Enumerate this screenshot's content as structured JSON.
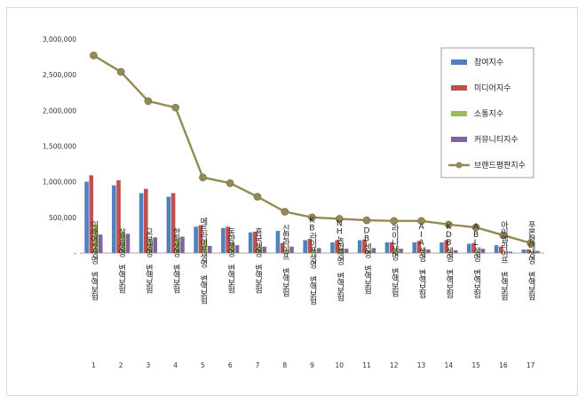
{
  "chart_data": {
    "type": "bar",
    "title": "",
    "xlabel": "",
    "ylabel": "",
    "ylim": [
      0,
      3000000
    ],
    "yticks": [
      "-",
      "500,000",
      "1,000,000",
      "1,500,000",
      "2,000,000",
      "2,500,000",
      "3,000,000"
    ],
    "grid": false,
    "legend_position": "top-right",
    "categories": [
      "미래에셋생명 변액보험",
      "삼성생명 변액보험",
      "교보생명 변액보험",
      "한화생명 변액보험",
      "메트라이프생명 변액보험",
      "동양생명 변액보험",
      "흥국생명 변액보험",
      "신한라이프 변액보험",
      "KB라이프생명 변액보험",
      "NH농협생명 변액보험",
      "DB생명 변액보험",
      "라이나생명 변액보험",
      "AIA생명 변액보험",
      "KDB생명 변액보험",
      "ABL생명 변액보험",
      "아이엠라이프 변액보험",
      "푸본현대생명 변액보험"
    ],
    "ranks": [
      "1",
      "2",
      "3",
      "4",
      "5",
      "6",
      "7",
      "8",
      "9",
      "10",
      "11",
      "12",
      "13",
      "14",
      "15",
      "16",
      "17"
    ],
    "series": [
      {
        "name": "참여지수",
        "color": "#4f81bd",
        "kind": "bar",
        "values": [
          1000000,
          950000,
          840000,
          790000,
          370000,
          350000,
          290000,
          310000,
          180000,
          150000,
          180000,
          150000,
          150000,
          150000,
          130000,
          110000,
          50000
        ]
      },
      {
        "name": "미디어지수",
        "color": "#c0504d",
        "kind": "bar",
        "values": [
          1090000,
          1020000,
          900000,
          840000,
          390000,
          370000,
          300000,
          140000,
          200000,
          180000,
          190000,
          150000,
          170000,
          180000,
          140000,
          90000,
          50000
        ]
      },
      {
        "name": "소통지수",
        "color": "#9bbb59",
        "kind": "bar",
        "values": [
          400000,
          300000,
          200000,
          200000,
          190000,
          150000,
          100000,
          50000,
          60000,
          70000,
          30000,
          60000,
          50000,
          30000,
          30000,
          20000,
          20000
        ]
      },
      {
        "name": "커뮤니티지수",
        "color": "#8064a2",
        "kind": "bar",
        "values": [
          260000,
          270000,
          220000,
          230000,
          100000,
          110000,
          90000,
          90000,
          70000,
          60000,
          70000,
          60000,
          50000,
          40000,
          60000,
          20000,
          30000
        ]
      },
      {
        "name": "브랜드평판지수",
        "color": "#948a54",
        "kind": "line",
        "values": [
          2770000,
          2540000,
          2130000,
          2040000,
          1060000,
          980000,
          790000,
          580000,
          500000,
          480000,
          460000,
          450000,
          450000,
          400000,
          360000,
          250000,
          140000
        ]
      }
    ]
  }
}
